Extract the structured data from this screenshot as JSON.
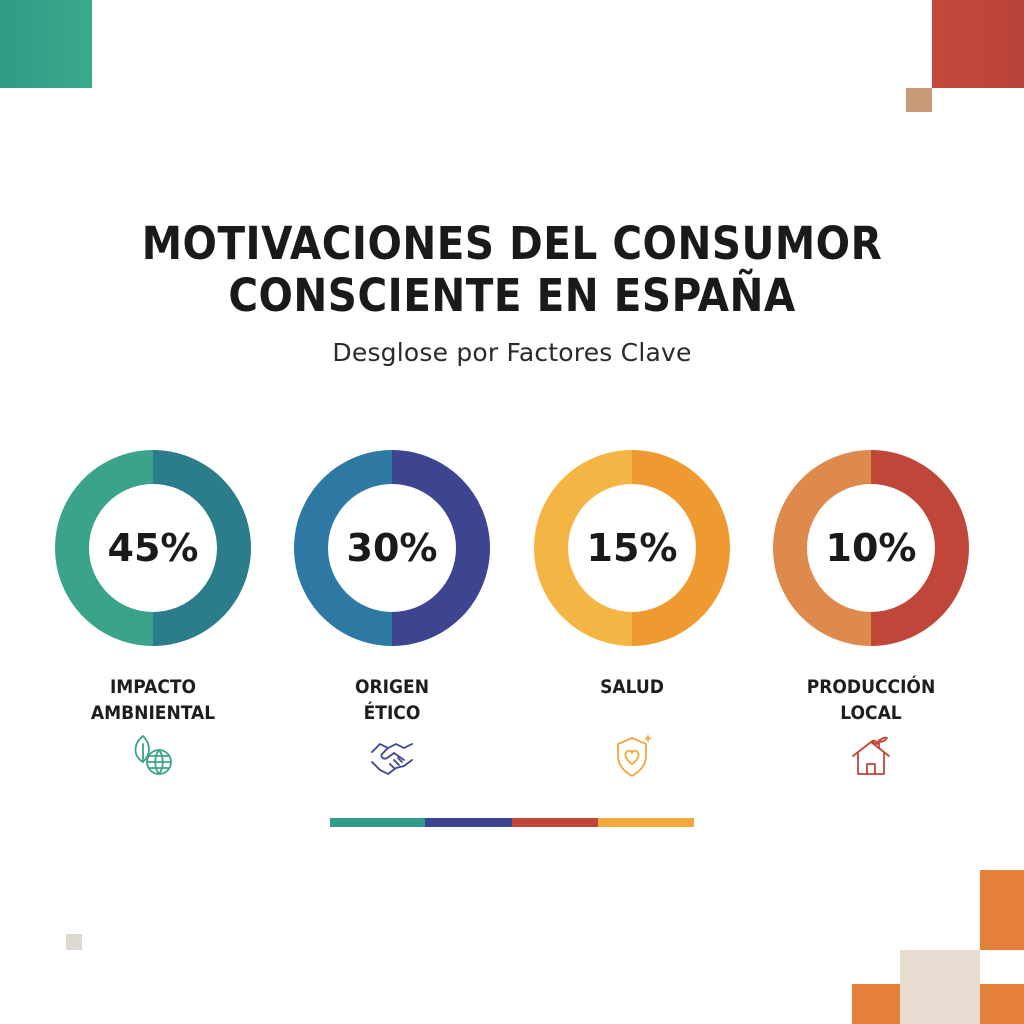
{
  "title_line1": "MOTIVACIONES DEL CONSUMOR",
  "title_line2": "CONSCIENTE EN ESPAÑA",
  "subtitle": "Desglose por Factores Clave",
  "chart_data": {
    "type": "pie",
    "categories": [
      "IMPACTO AMBNIENTAL",
      "ORIGEN ÉTICO",
      "SALUD",
      "PRODUCCIÓN LOCAL"
    ],
    "values": [
      45,
      30,
      15,
      10
    ],
    "unit": "%",
    "title": "MOTIVACIONES DEL CONSUMOR CONSCIENTE EN ESPAÑA",
    "subtitle": "Desglose por Factores Clave"
  },
  "items": [
    {
      "pct": "45%",
      "label1": "IMPACTO",
      "label2": "AMBNIENTAL",
      "icon": "leaf-globe-icon",
      "colors": {
        "light": "#3aa38a",
        "dark": "#2b7d8c",
        "icon": "#3aa38a"
      }
    },
    {
      "pct": "30%",
      "label1": "ORIGEN",
      "label2": "ÉTICO",
      "icon": "handshake-icon",
      "colors": {
        "light": "#2e79a4",
        "dark": "#3d4590",
        "icon": "#3d4590"
      }
    },
    {
      "pct": "15%",
      "label1": "SALUD",
      "label2": "",
      "icon": "heart-shield-icon",
      "colors": {
        "light": "#f5b544",
        "dark": "#ef9a30",
        "icon": "#f0a83a"
      }
    },
    {
      "pct": "10%",
      "label1": "PRODUCCIÓN",
      "label2": "LOCAL",
      "icon": "house-sprout-icon",
      "colors": {
        "light": "#dd8a4c",
        "dark": "#c1463a",
        "icon": "#c1463a"
      }
    }
  ],
  "palette": {
    "teal": "#2f9b88",
    "indigo": "#3d4590",
    "red": "#c1463a",
    "amber": "#f2a93b",
    "beige": "#c99a76",
    "orange": "#e4803a",
    "sand": "#e7ddd1"
  }
}
